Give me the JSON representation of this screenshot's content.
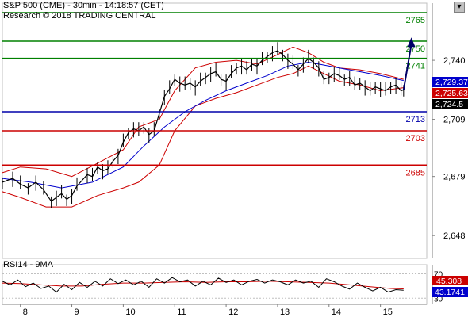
{
  "header": {
    "title": "S&P 500 (CME)  - 30min - 14:18:57 (CET)",
    "subtitle": "Research © 2018 TRADING CENTRAL"
  },
  "colors": {
    "resistance": "#008000",
    "pivot": "#0000aa",
    "support": "#cc0000",
    "price": "#000000",
    "ma": "#0000cc",
    "bollinger": "#cc0000",
    "arrow": "#000066",
    "rsi": "#000000",
    "rsi_ma": "#cc0000"
  },
  "chart_data": {
    "type": "line",
    "y_axis": {
      "range": [
        2636,
        2770
      ],
      "ticks": [
        {
          "value": 2740,
          "label": "2,740"
        },
        {
          "value": 2709,
          "label": "2,709"
        },
        {
          "value": 2679,
          "label": "2,679"
        },
        {
          "value": 2648,
          "label": "2,648"
        }
      ]
    },
    "x_axis": {
      "range": [
        7.65,
        15.9
      ],
      "ticks": [
        {
          "x": 8,
          "label": "8"
        },
        {
          "x": 9,
          "label": "9"
        },
        {
          "x": 10,
          "label": "10"
        },
        {
          "x": 11,
          "label": "11"
        },
        {
          "x": 12,
          "label": "12"
        },
        {
          "x": 13,
          "label": "13"
        },
        {
          "x": 14,
          "label": "14"
        },
        {
          "x": 15,
          "label": "15"
        }
      ]
    },
    "levels": [
      {
        "value": 2765,
        "label": "2765",
        "kind": "resistance"
      },
      {
        "value": 2750,
        "label": "2750",
        "kind": "resistance"
      },
      {
        "value": 2741,
        "label": "2741",
        "kind": "resistance"
      },
      {
        "value": 2713,
        "label": "2713",
        "kind": "pivot"
      },
      {
        "value": 2703,
        "label": "2703",
        "kind": "support"
      },
      {
        "value": 2685,
        "label": "2685",
        "kind": "support"
      }
    ],
    "price_tags": [
      {
        "value": 2729.37,
        "label": "2,729.37",
        "kind": "ma"
      },
      {
        "value": 2725.63,
        "label": "2,725.63",
        "kind": "bollinger"
      },
      {
        "value": 2724.5,
        "label": "2,724.5",
        "kind": "last"
      }
    ],
    "price": {
      "x": [
        7.65,
        7.85,
        8.0,
        8.15,
        8.3,
        8.45,
        8.6,
        8.7,
        8.8,
        8.9,
        9.0,
        9.1,
        9.2,
        9.3,
        9.4,
        9.5,
        9.6,
        9.7,
        9.8,
        9.9,
        10.0,
        10.1,
        10.2,
        10.3,
        10.4,
        10.5,
        10.6,
        10.7,
        10.8,
        10.9,
        11.0,
        11.1,
        11.2,
        11.3,
        11.4,
        11.5,
        11.6,
        11.7,
        11.8,
        11.9,
        12.0,
        12.1,
        12.2,
        12.3,
        12.4,
        12.5,
        12.6,
        12.7,
        12.8,
        12.9,
        13.0,
        13.1,
        13.2,
        13.3,
        13.4,
        13.5,
        13.6,
        13.7,
        13.8,
        13.9,
        14.0,
        14.1,
        14.2,
        14.3,
        14.4,
        14.5,
        14.6,
        14.7,
        14.8,
        14.9,
        15.0,
        15.1,
        15.2,
        15.3,
        15.4,
        15.45
      ],
      "y": [
        2676,
        2678,
        2675,
        2673,
        2676,
        2672,
        2666,
        2668,
        2670,
        2667,
        2669,
        2674,
        2677,
        2680,
        2679,
        2684,
        2682,
        2683,
        2687,
        2690,
        2697,
        2702,
        2704,
        2703,
        2705,
        2701,
        2703,
        2712,
        2721,
        2725,
        2730,
        2728,
        2727,
        2728,
        2726,
        2729,
        2731,
        2733,
        2734,
        2730,
        2729,
        2733,
        2736,
        2737,
        2735,
        2738,
        2737,
        2740,
        2742,
        2744,
        2745,
        2743,
        2740,
        2738,
        2735,
        2738,
        2741,
        2739,
        2736,
        2730,
        2731,
        2733,
        2732,
        2730,
        2731,
        2727,
        2728,
        2726,
        2724,
        2726,
        2725,
        2724,
        2726,
        2727,
        2724,
        2724.5
      ]
    },
    "moving_average": {
      "x": [
        7.65,
        8.2,
        8.8,
        9.4,
        10.0,
        10.4,
        10.8,
        11.2,
        11.6,
        12.0,
        12.4,
        12.8,
        13.2,
        13.6,
        13.8,
        14.2,
        14.6,
        15.0,
        15.45
      ],
      "y": [
        2678,
        2676,
        2673,
        2676,
        2684,
        2695,
        2705,
        2713,
        2719,
        2724,
        2728,
        2732,
        2737,
        2739,
        2738,
        2736,
        2734,
        2732,
        2729.37
      ]
    },
    "bollinger_upper": {
      "x": [
        7.65,
        8.0,
        8.5,
        9.0,
        9.5,
        10.0,
        10.3,
        10.7,
        11.0,
        11.4,
        11.8,
        12.2,
        12.6,
        13.0,
        13.3,
        13.6,
        13.9,
        14.2,
        14.6,
        15.0,
        15.45
      ],
      "y": [
        2681,
        2684,
        2683,
        2679,
        2686,
        2693,
        2705,
        2709,
        2724,
        2736,
        2739,
        2740,
        2738,
        2743,
        2747,
        2744,
        2739,
        2736,
        2735,
        2733,
        2730
      ]
    },
    "bollinger_lower": {
      "x": [
        7.65,
        8.0,
        8.5,
        9.0,
        9.5,
        10.0,
        10.3,
        10.7,
        11.0,
        11.4,
        11.8,
        12.2,
        12.6,
        13.0,
        13.3,
        13.6,
        13.9,
        14.2,
        14.6,
        15.0,
        15.45
      ],
      "y": [
        2671,
        2668,
        2663,
        2663,
        2669,
        2673,
        2676,
        2685,
        2703,
        2716,
        2720,
        2723,
        2727,
        2731,
        2733,
        2737,
        2733,
        2729,
        2727,
        2724,
        2725.63
      ]
    },
    "projection": {
      "x": [
        15.45,
        15.6
      ],
      "y": [
        2724.5,
        2752
      ]
    },
    "rsi_panel": {
      "title": "RSI14 - 9MA",
      "range": [
        20,
        85
      ],
      "ticks": [
        {
          "value": 70,
          "label": "70"
        },
        {
          "value": 30,
          "label": "30"
        }
      ],
      "rsi_tag": {
        "value": 43.1741,
        "label": "43.1741"
      },
      "ma_tag": {
        "value": 45.308,
        "label": "45.308"
      },
      "rsi": {
        "x": [
          7.65,
          7.8,
          7.95,
          8.1,
          8.25,
          8.4,
          8.55,
          8.7,
          8.85,
          9.0,
          9.15,
          9.3,
          9.45,
          9.6,
          9.75,
          9.9,
          10.05,
          10.2,
          10.35,
          10.5,
          10.65,
          10.8,
          10.95,
          11.1,
          11.25,
          11.4,
          11.55,
          11.7,
          11.85,
          12.0,
          12.15,
          12.3,
          12.45,
          12.6,
          12.75,
          12.9,
          13.05,
          13.2,
          13.35,
          13.5,
          13.65,
          13.8,
          13.95,
          14.1,
          14.25,
          14.4,
          14.55,
          14.7,
          14.85,
          15.0,
          15.15,
          15.3,
          15.45
        ],
        "y": [
          58,
          52,
          60,
          49,
          55,
          46,
          50,
          40,
          53,
          44,
          56,
          48,
          58,
          50,
          62,
          54,
          60,
          52,
          58,
          48,
          62,
          55,
          64,
          57,
          60,
          50,
          58,
          52,
          63,
          56,
          60,
          52,
          58,
          61,
          55,
          60,
          57,
          52,
          60,
          55,
          58,
          48,
          62,
          57,
          50,
          45,
          55,
          48,
          42,
          48,
          40,
          44,
          43.1741
        ]
      },
      "ma": {
        "x": [
          7.65,
          8.0,
          8.4,
          8.8,
          9.2,
          9.6,
          10.0,
          10.4,
          10.8,
          11.2,
          11.6,
          12.0,
          12.4,
          12.8,
          13.2,
          13.6,
          14.0,
          14.4,
          14.8,
          15.2,
          15.45
        ],
        "y": [
          55,
          54,
          52,
          50,
          50,
          53,
          55,
          55,
          56,
          57,
          56,
          57,
          57,
          58,
          57,
          56,
          55,
          52,
          49,
          46,
          45.308
        ]
      }
    }
  }
}
